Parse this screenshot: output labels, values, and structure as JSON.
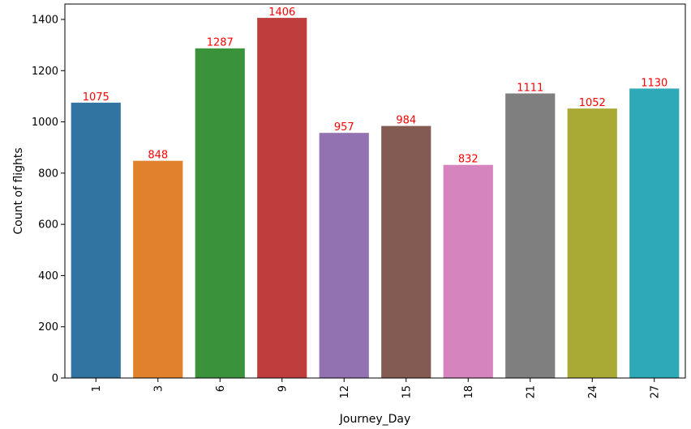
{
  "chart_data": {
    "type": "bar",
    "categories": [
      "1",
      "3",
      "6",
      "9",
      "12",
      "15",
      "18",
      "21",
      "24",
      "27"
    ],
    "values": [
      1075,
      848,
      1287,
      1406,
      957,
      984,
      832,
      1111,
      1052,
      1130
    ],
    "data_labels": [
      "1075",
      "848",
      "1287",
      "1406",
      "957",
      "984",
      "832",
      "1111",
      "1052",
      "1130"
    ],
    "colors": [
      "#3274a1",
      "#e1812c",
      "#3a923a",
      "#c03d3e",
      "#9372b2",
      "#845b53",
      "#d684bd",
      "#7f7f7f",
      "#a9aa35",
      "#2ea9b8"
    ],
    "label_color": "#ff0000",
    "xlabel": "Journey_Day",
    "ylabel": "Count of flights",
    "ylim": [
      0,
      1460
    ],
    "yticks": [
      0,
      200,
      400,
      600,
      800,
      1000,
      1200,
      1400
    ],
    "ytick_labels": [
      "0",
      "200",
      "400",
      "600",
      "800",
      "1000",
      "1200",
      "1400"
    ],
    "grid": false,
    "xtick_rotation": "vertical"
  }
}
